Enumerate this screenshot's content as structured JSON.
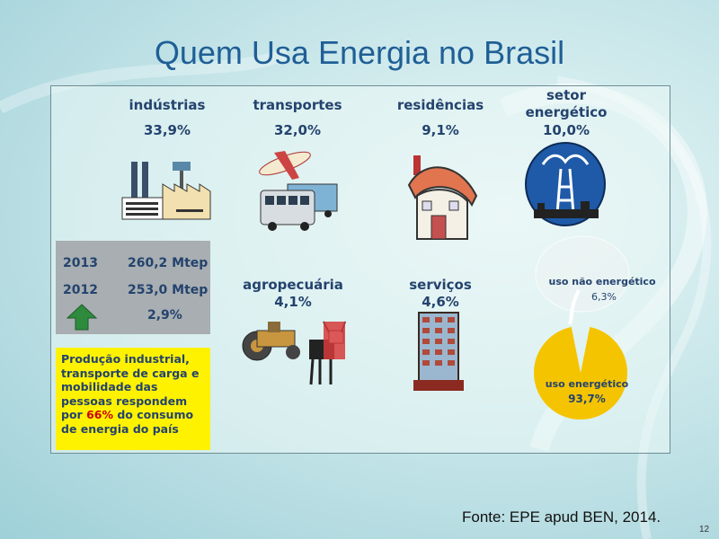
{
  "title": "Quem Usa Energia no Brasil",
  "sectors": [
    {
      "name": "indústrias",
      "pct": "33,9%",
      "icon": "factory-icon"
    },
    {
      "name": "transportes",
      "pct": "32,0%",
      "icon": "airplane-truck-bus-icon"
    },
    {
      "name": "residências",
      "pct": "9,1%",
      "icon": "house-icon"
    },
    {
      "name1": "setor",
      "name2": "energético",
      "pct": "10,0%",
      "icon": "oil-refinery-icon"
    },
    {
      "name": "agropecuária",
      "pct": "4,1%",
      "icon": "tractor-ox-icon"
    },
    {
      "name": "serviços",
      "pct": "4,6%",
      "icon": "office-building-icon"
    }
  ],
  "stats": {
    "row1_year": "2013",
    "row1_value": "260,2 Mtep",
    "row2_year": "2012",
    "row2_value": "253,0 Mtep",
    "growth": "2,9%",
    "arrow_icon": "up-arrow-icon"
  },
  "note": {
    "text_part1": "Produção industrial, transporte de carga e mobilidade das pessoas respondem por ",
    "highlight": "66%",
    "text_part2": " do consumo de energia do país"
  },
  "pie": {
    "non_energy_label": "uso não energético",
    "non_energy_value": "6,3%",
    "energy_label": "uso energético",
    "energy_value": "93,7%",
    "colors": {
      "energy": "#f5c400",
      "non_energy": "#e8eeee"
    }
  },
  "source": "Fonte: EPE apud BEN, 2014.",
  "page_number": "12"
}
